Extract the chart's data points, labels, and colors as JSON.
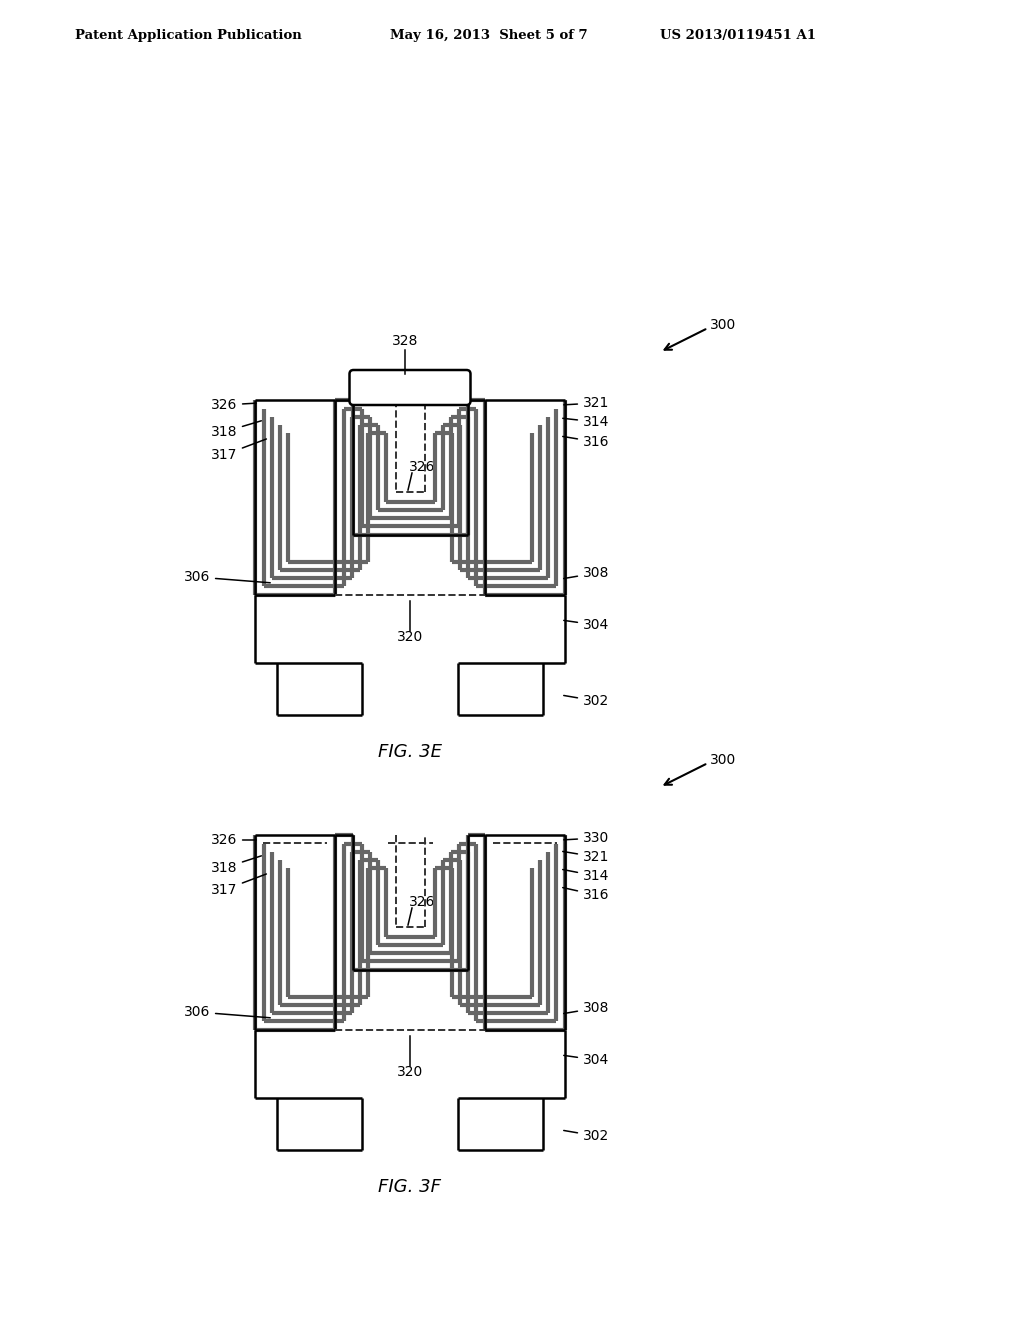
{
  "header_left": "Patent Application Publication",
  "header_mid": "May 16, 2013  Sheet 5 of 7",
  "header_right": "US 2013/0119451 A1",
  "fig3e_label": "FIG. 3E",
  "fig3f_label": "FIG. 3F",
  "bg_color": "#ffffff",
  "line_color": "#000000",
  "gray_color": "#666666"
}
